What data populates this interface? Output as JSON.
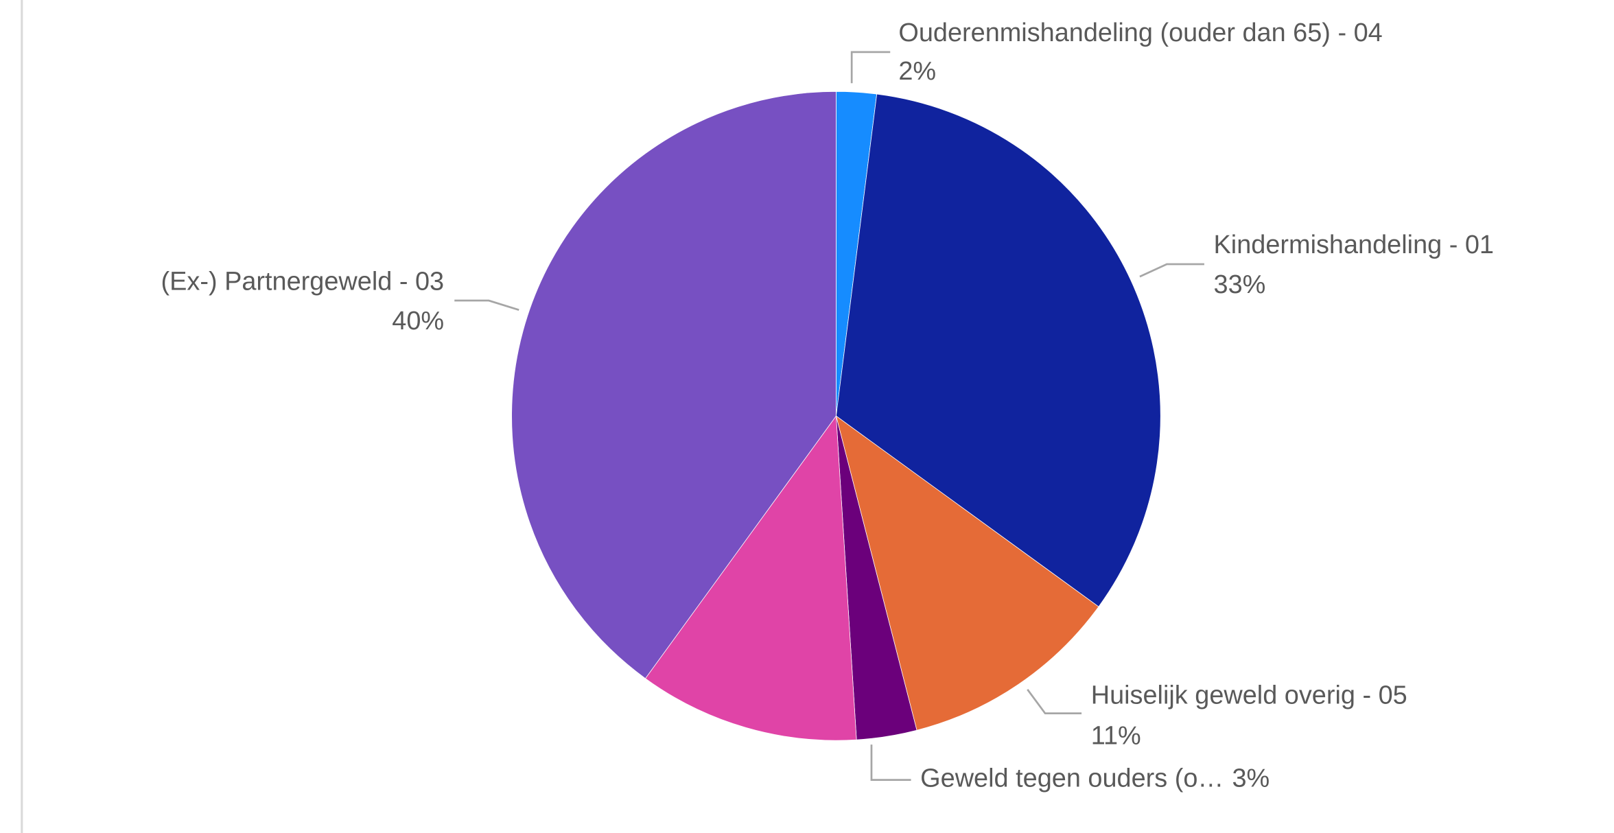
{
  "chart_data": {
    "type": "pie",
    "categories": [
      "Ouderenmishandeling (ouder dan 65) - 04",
      "Kindermishandeling - 01",
      "Huiselijk geweld overig - 05",
      "Geweld tegen ouders (o…",
      null,
      "(Ex-) Partnergeweld - 03"
    ],
    "values": [
      2,
      33,
      11,
      3,
      11,
      40
    ],
    "value_labels": [
      "2%",
      "33%",
      "11%",
      "3%",
      null,
      "40%"
    ],
    "colors": [
      "#168cff",
      "#10239e",
      "#e56b37",
      "#6b007b",
      "#e044a7",
      "#7750c2"
    ]
  }
}
